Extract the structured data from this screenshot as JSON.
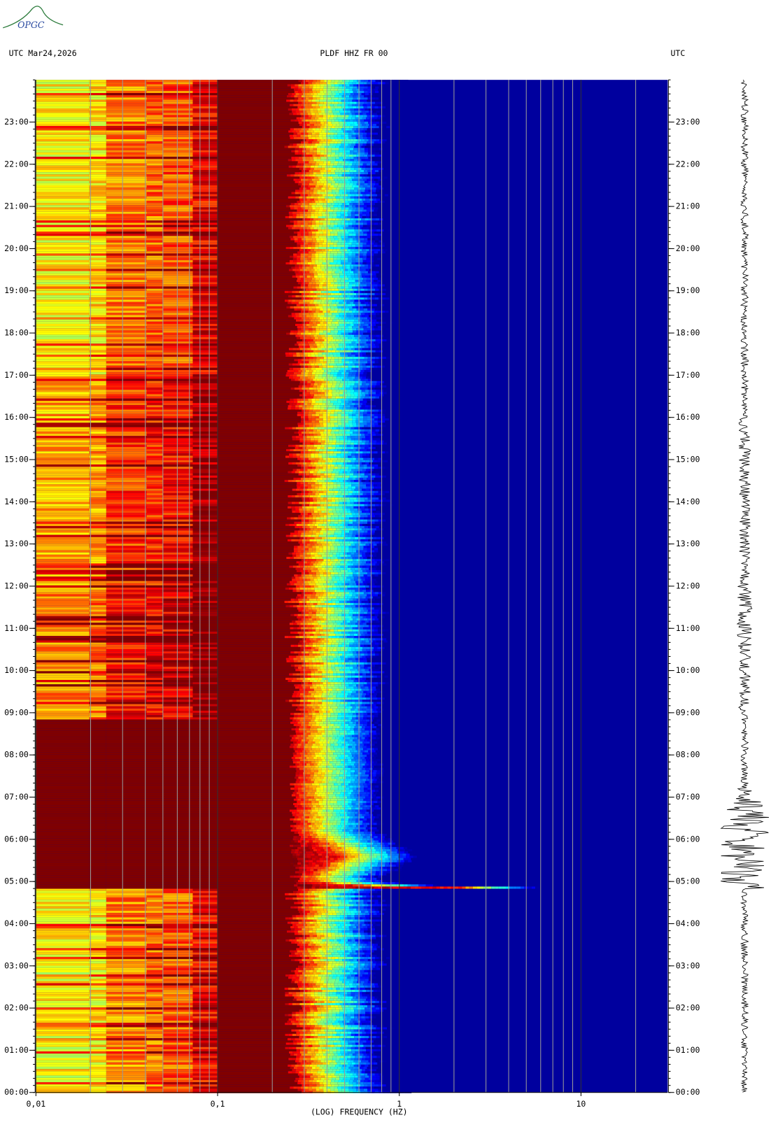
{
  "logo": "OPGC",
  "chart_data": {
    "type": "spectrogram",
    "title": "PLDF HHZ FR 00",
    "subtitle": "UTC  Mar24,2026",
    "right_label": "UTC",
    "x_label": "(LOG) FREQUENCY (HZ)",
    "log_x": true,
    "xlim": [
      0.01,
      30
    ],
    "xticks": [
      {
        "value": 0.01,
        "label": "0,01"
      },
      {
        "value": 0.1,
        "label": "0,1"
      },
      1,
      10
    ],
    "xminorticks": [
      0.02,
      0.03,
      0.04,
      0.05,
      0.06,
      0.07,
      0.08,
      0.09,
      0.2,
      0.3,
      0.4,
      0.5,
      0.6,
      0.7,
      0.8,
      0.9,
      2,
      3,
      4,
      5,
      6,
      7,
      8,
      9,
      20
    ],
    "ylim": [
      0,
      24
    ],
    "yticks": [
      {
        "value": 0,
        "label": "00:00"
      },
      {
        "value": 1,
        "label": "01:00"
      },
      {
        "value": 2,
        "label": "02:00"
      },
      {
        "value": 3,
        "label": "03:00"
      },
      {
        "value": 4,
        "label": "04:00"
      },
      {
        "value": 5,
        "label": "05:00"
      },
      {
        "value": 6,
        "label": "06:00"
      },
      {
        "value": 7,
        "label": "07:00"
      },
      {
        "value": 8,
        "label": "08:00"
      },
      {
        "value": 9,
        "label": "09:00"
      },
      {
        "value": 10,
        "label": "10:00"
      },
      {
        "value": 11,
        "label": "11:00"
      },
      {
        "value": 12,
        "label": "12:00"
      },
      {
        "value": 13,
        "label": "13:00"
      },
      {
        "value": 14,
        "label": "14:00"
      },
      {
        "value": 15,
        "label": "15:00"
      },
      {
        "value": 16,
        "label": "16:00"
      },
      {
        "value": 17,
        "label": "17:00"
      },
      {
        "value": 18,
        "label": "18:00"
      },
      {
        "value": 19,
        "label": "19:00"
      },
      {
        "value": 20,
        "label": "20:00"
      },
      {
        "value": 21,
        "label": "21:00"
      },
      {
        "value": 22,
        "label": "22:00"
      },
      {
        "value": 23,
        "label": "23:00"
      }
    ]
  }
}
